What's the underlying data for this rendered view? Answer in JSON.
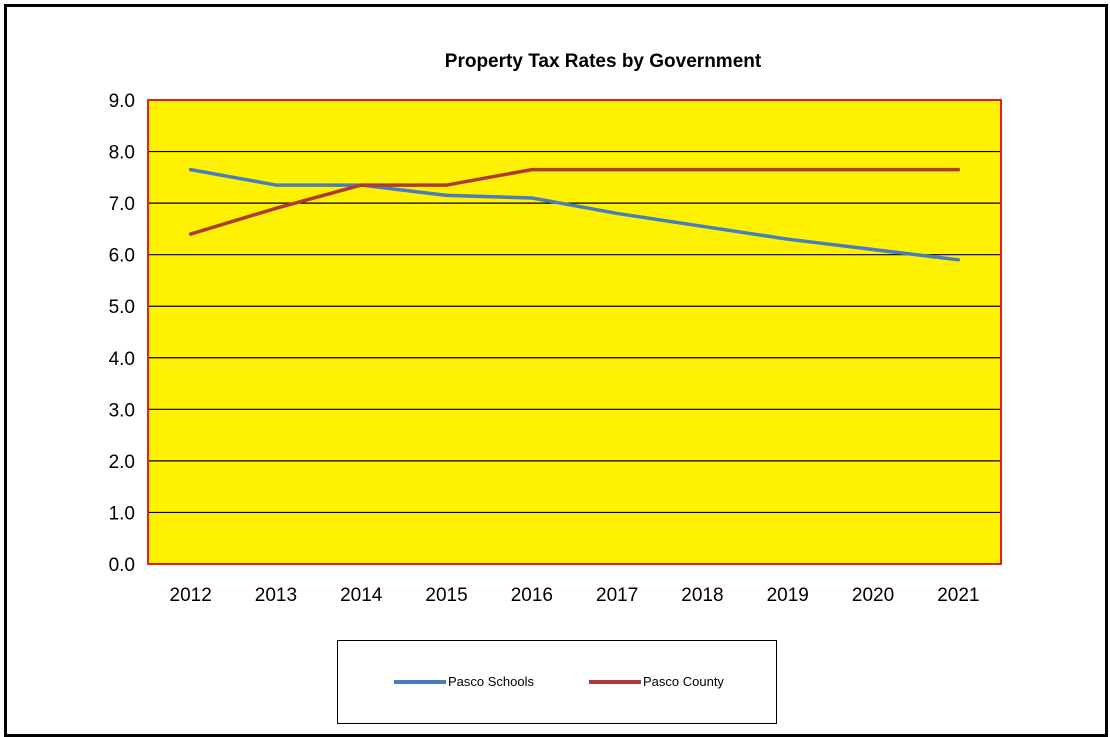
{
  "chart_data": {
    "type": "line",
    "title": "Property Tax Rates by Government",
    "xlabel": "",
    "ylabel": "",
    "categories": [
      "2012",
      "2013",
      "2014",
      "2015",
      "2016",
      "2017",
      "2018",
      "2019",
      "2020",
      "2021"
    ],
    "ylim": [
      0,
      9
    ],
    "yticks": [
      "0.0",
      "1.0",
      "2.0",
      "3.0",
      "4.0",
      "5.0",
      "6.0",
      "7.0",
      "8.0",
      "9.0"
    ],
    "grid": true,
    "legend_position": "bottom",
    "plot_background": "#FFF200",
    "plot_border_color": "#E31E24",
    "series": [
      {
        "name": "Pasco Schools",
        "color": "#4A7EBB",
        "values": [
          7.65,
          7.35,
          7.35,
          7.15,
          7.1,
          6.8,
          6.55,
          6.3,
          6.1,
          5.9
        ]
      },
      {
        "name": "Pasco County",
        "color": "#B03A3A",
        "values": [
          6.4,
          6.9,
          7.35,
          7.35,
          7.65,
          7.65,
          7.65,
          7.65,
          7.65,
          7.65
        ]
      }
    ]
  }
}
